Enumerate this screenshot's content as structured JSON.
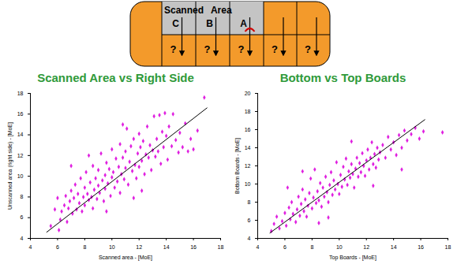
{
  "diagram": {
    "header_text": "Scanned Area",
    "scanned_cells": [
      "C",
      "B",
      "A"
    ],
    "unknown_cells": [
      "?",
      "?",
      "?",
      "?",
      "?"
    ]
  },
  "chart_data": [
    {
      "type": "scatter",
      "title": "Scanned Area vs Right Side",
      "xlabel": "Scanned area - [MoE]",
      "ylabel": "Unscanned area (right side) - [MoE]",
      "color": "#e020e0",
      "marker": "diamond",
      "x": [
        5.8,
        6.0,
        6.2,
        6.3,
        6.5,
        6.6,
        6.7,
        6.8,
        6.9,
        7.0,
        7.1,
        7.2,
        7.3,
        7.4,
        7.5,
        7.6,
        7.7,
        7.8,
        7.9,
        8.0,
        8.0,
        8.1,
        8.2,
        8.3,
        8.4,
        8.5,
        8.6,
        8.6,
        8.7,
        8.8,
        8.9,
        9.0,
        9.0,
        9.1,
        9.2,
        9.3,
        9.4,
        9.5,
        9.5,
        9.6,
        9.7,
        9.8,
        9.9,
        10.0,
        10.0,
        10.1,
        10.2,
        10.3,
        10.4,
        10.5,
        10.6,
        10.6,
        10.7,
        10.8,
        10.9,
        11.0,
        11.0,
        11.1,
        11.2,
        11.3,
        11.4,
        11.5,
        11.6,
        11.7,
        11.8,
        11.9,
        12.0,
        12.0,
        12.1,
        12.2,
        12.3,
        12.4,
        12.5,
        12.6,
        12.7,
        12.8,
        12.9,
        13.0,
        13.1,
        13.2,
        13.3,
        13.4,
        13.5,
        13.6,
        13.7,
        13.8,
        14.0,
        14.1,
        14.2,
        14.4,
        14.5,
        14.7,
        14.9,
        15.0,
        15.2,
        15.4,
        15.6,
        15.8,
        16.0,
        16.3,
        16.8,
        5.5,
        6.1,
        7.0,
        8.3,
        9.6,
        10.8,
        12.2,
        13.9,
        11.6
      ],
      "values": [
        6.8,
        7.9,
        5.8,
        6.6,
        7.2,
        8.1,
        5.6,
        6.9,
        7.6,
        8.6,
        6.4,
        7.9,
        9.2,
        6.8,
        8.3,
        7.4,
        9.8,
        6.6,
        8.0,
        8.9,
        7.2,
        10.4,
        8.3,
        7.7,
        9.4,
        8.0,
        11.0,
        6.9,
        8.7,
        9.8,
        7.8,
        9.1,
        10.6,
        8.4,
        12.2,
        9.6,
        7.6,
        10.1,
        8.8,
        11.3,
        9.3,
        10.7,
        8.1,
        9.9,
        12.6,
        10.4,
        8.9,
        11.7,
        9.5,
        10.9,
        13.1,
        8.4,
        10.2,
        11.8,
        9.7,
        12.4,
        10.8,
        14.6,
        9.2,
        11.4,
        12.9,
        10.5,
        13.6,
        11.1,
        9.8,
        12.2,
        14.1,
        10.9,
        12.8,
        11.5,
        13.4,
        10.2,
        12.1,
        14.8,
        11.8,
        13.0,
        10.6,
        12.5,
        15.8,
        11.9,
        13.6,
        12.4,
        15.9,
        11.2,
        14.3,
        12.8,
        13.9,
        11.6,
        14.8,
        12.9,
        16.0,
        13.5,
        12.3,
        14.2,
        12.8,
        15.1,
        12.4,
        13.6,
        12.6,
        14.4,
        17.6,
        5.2,
        4.8,
        11.0,
        12.0,
        6.6,
        15.0,
        8.6,
        16.1,
        7.9
      ],
      "trend_line": {
        "x": [
          5.2,
          17.0
        ],
        "values": [
          4.6,
          16.6
        ],
        "color": "#000000"
      },
      "xlim": [
        4,
        18
      ],
      "ylim": [
        4,
        18
      ],
      "xticks": [
        4,
        6,
        8,
        10,
        12,
        14,
        16,
        18
      ],
      "yticks": [
        4,
        6,
        8,
        10,
        12,
        14,
        16,
        18
      ]
    },
    {
      "type": "scatter",
      "title": "Bottom vs Top Boards",
      "xlabel": "Top Boards - [MoE]",
      "ylabel": "Bottom Boards - [MoE]",
      "color": "#e020e0",
      "marker": "diamond",
      "x": [
        5.0,
        5.2,
        5.4,
        5.6,
        5.8,
        6.0,
        6.1,
        6.3,
        6.4,
        6.5,
        6.6,
        6.8,
        6.9,
        7.0,
        7.1,
        7.2,
        7.3,
        7.4,
        7.5,
        7.6,
        7.7,
        7.8,
        7.9,
        8.0,
        8.1,
        8.2,
        8.3,
        8.4,
        8.5,
        8.6,
        8.7,
        8.8,
        8.9,
        9.0,
        9.1,
        9.2,
        9.3,
        9.4,
        9.5,
        9.6,
        9.7,
        9.8,
        9.9,
        10.0,
        10.1,
        10.2,
        10.3,
        10.4,
        10.5,
        10.6,
        10.7,
        10.8,
        10.9,
        11.0,
        11.1,
        11.2,
        11.3,
        11.4,
        11.5,
        11.6,
        11.7,
        11.8,
        11.9,
        12.0,
        12.1,
        12.2,
        12.3,
        12.4,
        12.5,
        12.6,
        12.7,
        12.8,
        12.9,
        13.0,
        13.2,
        13.4,
        13.6,
        13.8,
        14.0,
        14.2,
        14.4,
        14.6,
        14.8,
        15.0,
        15.3,
        15.6,
        15.9,
        16.2,
        17.6,
        6.2,
        7.3,
        9.2,
        10.9,
        12.5,
        14.6,
        8.5
      ],
      "values": [
        4.8,
        5.6,
        6.4,
        5.1,
        5.9,
        6.8,
        5.4,
        7.4,
        6.1,
        8.0,
        6.7,
        5.8,
        7.2,
        8.6,
        6.5,
        7.8,
        9.4,
        7.0,
        8.3,
        6.4,
        7.6,
        9.0,
        10.6,
        7.3,
        8.5,
        11.6,
        7.9,
        9.2,
        8.2,
        10.1,
        7.5,
        9.6,
        8.6,
        10.8,
        9.1,
        8.0,
        9.9,
        11.3,
        8.8,
        10.4,
        9.4,
        12.4,
        10.0,
        8.9,
        11.0,
        9.7,
        11.9,
        10.5,
        12.8,
        9.9,
        11.4,
        10.7,
        12.2,
        11.1,
        9.6,
        11.7,
        12.9,
        10.8,
        12.3,
        11.3,
        13.4,
        12.0,
        10.9,
        12.6,
        13.8,
        11.6,
        12.9,
        14.6,
        12.2,
        13.3,
        11.8,
        14.0,
        12.7,
        13.5,
        14.3,
        12.9,
        15.2,
        13.8,
        14.6,
        13.2,
        15.4,
        14.0,
        15.9,
        14.8,
        15.5,
        16.2,
        15.0,
        15.8,
        15.7,
        9.6,
        11.4,
        6.3,
        14.7,
        9.8,
        11.6,
        5.7
      ],
      "trend_line": {
        "x": [
          4.9,
          16.3
        ],
        "values": [
          4.6,
          17.1
        ],
        "color": "#000000"
      },
      "xlim": [
        4,
        18
      ],
      "ylim": [
        4,
        20
      ],
      "xticks": [
        4,
        6,
        8,
        10,
        12,
        14,
        16,
        18
      ],
      "yticks": [
        4,
        6,
        8,
        10,
        12,
        14,
        16,
        18,
        20
      ]
    }
  ]
}
